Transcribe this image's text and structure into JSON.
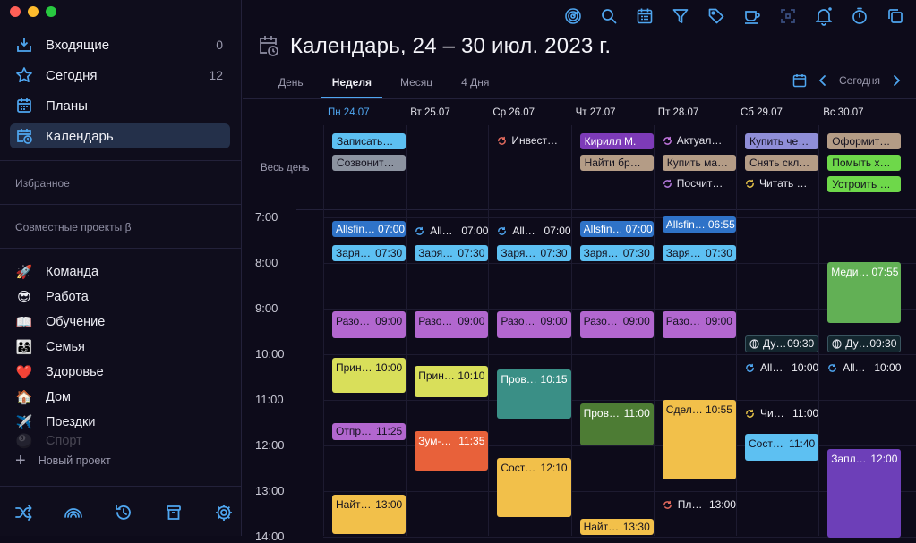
{
  "sidebar": {
    "nav": [
      {
        "label": "Входящие",
        "count": "0",
        "icon": "inbox-icon"
      },
      {
        "label": "Сегодня",
        "count": "12",
        "icon": "star-icon"
      },
      {
        "label": "Планы",
        "count": "",
        "icon": "plans-calendar-icon"
      },
      {
        "label": "Календарь",
        "count": "",
        "icon": "calendar-clock-icon"
      }
    ],
    "favorites_title": "Избранное",
    "shared_title": "Совместные проекты β",
    "projects": [
      {
        "emoji": "🚀",
        "label": "Команда"
      },
      {
        "emoji": "😎",
        "label": "Работа"
      },
      {
        "emoji": "📖",
        "label": "Обучение"
      },
      {
        "emoji": "👨‍👩‍👧",
        "label": "Семья"
      },
      {
        "emoji": "❤️",
        "label": "Здоровье"
      },
      {
        "emoji": "🏠",
        "label": "Дом"
      },
      {
        "emoji": "✈️",
        "label": "Поездки"
      },
      {
        "emoji": "🎱",
        "label": "Спорт"
      }
    ],
    "new_project": "Новый проект",
    "bottom_icons": [
      "shuffle-icon",
      "rainbow-icon",
      "history-icon",
      "trash-icon",
      "settings-icon"
    ]
  },
  "toolbar_icons": [
    "focus-icon",
    "search-icon",
    "calendar-grid-icon",
    "filter-icon",
    "tag-icon",
    "coffee-icon",
    "scan-icon",
    "bell-icon",
    "timer-icon",
    "copy-icon"
  ],
  "header": {
    "title": "Календарь, 24 – 30 июл. 2023 г.",
    "tabs": [
      "День",
      "Неделя",
      "Месяц",
      "4 Дня"
    ],
    "active_tab": "Неделя",
    "today_label": "Сегодня"
  },
  "days": [
    "Пн 24.07",
    "Вт 25.07",
    "Ср 26.07",
    "Чт 27.07",
    "Пт 28.07",
    "Сб 29.07",
    "Вс 30.07"
  ],
  "allday_label": "Весь день",
  "hours": [
    "7:00",
    "8:00",
    "9:00",
    "10:00",
    "11:00",
    "12:00",
    "13:00",
    "14:00"
  ],
  "allday": [
    {
      "day": 0,
      "row": 0,
      "text": "Записать…",
      "color": "#5dc0f2",
      "style": "chip"
    },
    {
      "day": 0,
      "row": 1,
      "text": "Созвонит…",
      "color": "#8c93a0",
      "style": "chip"
    },
    {
      "day": 2,
      "row": 0,
      "text": "Инвест…",
      "color": "#e36b5e",
      "style": "plain"
    },
    {
      "day": 3,
      "row": 0,
      "text": "Кирилл М.",
      "color": "#7d3bb8",
      "style": "chip"
    },
    {
      "day": 3,
      "row": 1,
      "text": "Найти бр…",
      "color": "#b49c86",
      "style": "chip"
    },
    {
      "day": 4,
      "row": 0,
      "text": "Актуал…",
      "color": "#c377e0",
      "style": "plain"
    },
    {
      "day": 4,
      "row": 1,
      "text": "Купить ма…",
      "color": "#b49c86",
      "style": "chip"
    },
    {
      "day": 4,
      "row": 2,
      "text": "Посчит…",
      "color": "#b67be0",
      "style": "plain"
    },
    {
      "day": 5,
      "row": 0,
      "text": "Купить че…",
      "color": "#8f8ed8",
      "style": "chip"
    },
    {
      "day": 5,
      "row": 1,
      "text": "Снять скл…",
      "color": "#b49c86",
      "style": "chip"
    },
    {
      "day": 5,
      "row": 2,
      "text": "Читать …",
      "color": "#e8c54a",
      "style": "plain"
    },
    {
      "day": 6,
      "row": 0,
      "text": "Оформит…",
      "color": "#b49c86",
      "style": "chip"
    },
    {
      "day": 6,
      "row": 1,
      "text": "Помыть х…",
      "color": "#6ed84a",
      "style": "chip"
    },
    {
      "day": 6,
      "row": 2,
      "text": "Устроить …",
      "color": "#6ed84a",
      "style": "chip"
    }
  ],
  "events": [
    {
      "day": 0,
      "text": "Allsfin…",
      "time": "07:00",
      "start": 7.08,
      "dur": 0.42,
      "color": "#2f73c8",
      "style": "block",
      "light": true
    },
    {
      "day": 0,
      "text": "Заря…",
      "time": "07:30",
      "start": 7.6,
      "dur": 0.4,
      "color": "#5dc0f2",
      "style": "block"
    },
    {
      "day": 0,
      "text": "Разо…",
      "time": "09:00",
      "start": 9.05,
      "dur": 0.65,
      "color": "#b267cf",
      "style": "block"
    },
    {
      "day": 0,
      "text": "Прин…",
      "time": "10:00",
      "start": 10.08,
      "dur": 0.82,
      "color": "#d9df5a",
      "style": "block"
    },
    {
      "day": 0,
      "text": "Отпр…",
      "time": "11:25",
      "start": 11.5,
      "dur": 0.45,
      "color": "#b267cf",
      "style": "block"
    },
    {
      "day": 0,
      "text": "Найт…",
      "time": "13:00",
      "start": 13.08,
      "dur": 0.92,
      "color": "#f2c04a",
      "style": "block"
    },
    {
      "day": 1,
      "text": "All…",
      "time": "07:00",
      "start": 7.12,
      "dur": 0.35,
      "color": "#4fa6f0",
      "style": "plain"
    },
    {
      "day": 1,
      "text": "Заря…",
      "time": "07:30",
      "start": 7.6,
      "dur": 0.4,
      "color": "#5dc0f2",
      "style": "block"
    },
    {
      "day": 1,
      "text": "Разо…",
      "time": "09:00",
      "start": 9.05,
      "dur": 0.65,
      "color": "#b267cf",
      "style": "block"
    },
    {
      "day": 1,
      "text": "Прин…",
      "time": "10:10",
      "start": 10.25,
      "dur": 0.75,
      "color": "#d9df5a",
      "style": "block"
    },
    {
      "day": 1,
      "text": "Зум-…",
      "time": "11:35",
      "start": 11.68,
      "dur": 0.92,
      "color": "#e8613a",
      "style": "block",
      "light": true
    },
    {
      "day": 2,
      "text": "All…",
      "time": "07:00",
      "start": 7.12,
      "dur": 0.35,
      "color": "#4fa6f0",
      "style": "plain"
    },
    {
      "day": 2,
      "text": "Заря…",
      "time": "07:30",
      "start": 7.6,
      "dur": 0.4,
      "color": "#5dc0f2",
      "style": "block"
    },
    {
      "day": 2,
      "text": "Разо…",
      "time": "09:00",
      "start": 9.05,
      "dur": 0.65,
      "color": "#b267cf",
      "style": "block"
    },
    {
      "day": 2,
      "text": "Пров…",
      "time": "10:15",
      "start": 10.33,
      "dur": 1.15,
      "color": "#3a8f86",
      "style": "block",
      "light": true
    },
    {
      "day": 2,
      "text": "Сост…",
      "time": "12:10",
      "start": 12.28,
      "dur": 1.35,
      "color": "#f2c04a",
      "style": "block"
    },
    {
      "day": 3,
      "text": "Allsfin…",
      "time": "07:00",
      "start": 7.08,
      "dur": 0.42,
      "color": "#2f73c8",
      "style": "block",
      "light": true
    },
    {
      "day": 3,
      "text": "Заря…",
      "time": "07:30",
      "start": 7.6,
      "dur": 0.4,
      "color": "#5dc0f2",
      "style": "block"
    },
    {
      "day": 3,
      "text": "Разо…",
      "time": "09:00",
      "start": 9.05,
      "dur": 0.65,
      "color": "#b267cf",
      "style": "block"
    },
    {
      "day": 3,
      "text": "Пров…",
      "time": "11:00",
      "start": 11.08,
      "dur": 0.98,
      "color": "#4d7c34",
      "style": "block",
      "light": true
    },
    {
      "day": 3,
      "text": "Найт…",
      "time": "13:30",
      "start": 13.6,
      "dur": 0.4,
      "color": "#f2c04a",
      "style": "block"
    },
    {
      "day": 4,
      "text": "Allsfin…",
      "time": "06:55",
      "start": 6.98,
      "dur": 0.42,
      "color": "#2f73c8",
      "style": "block",
      "light": true
    },
    {
      "day": 4,
      "text": "Заря…",
      "time": "07:30",
      "start": 7.6,
      "dur": 0.4,
      "color": "#5dc0f2",
      "style": "block"
    },
    {
      "day": 4,
      "text": "Разо…",
      "time": "09:00",
      "start": 9.05,
      "dur": 0.65,
      "color": "#b267cf",
      "style": "block"
    },
    {
      "day": 4,
      "text": "Сдел…",
      "time": "10:55",
      "start": 11.0,
      "dur": 1.8,
      "color": "#f2c04a",
      "style": "block"
    },
    {
      "day": 4,
      "text": "Пл…",
      "time": "13:00",
      "start": 13.12,
      "dur": 0.35,
      "color": "#e36b5e",
      "style": "plain"
    },
    {
      "day": 5,
      "text": "Ду…",
      "time": "09:30",
      "start": 9.58,
      "dur": 0.38,
      "color": "#e6e6ee",
      "style": "boxed"
    },
    {
      "day": 5,
      "text": "All…",
      "time": "10:00",
      "start": 10.12,
      "dur": 0.35,
      "color": "#4fa6f0",
      "style": "plain"
    },
    {
      "day": 5,
      "text": "Чи…",
      "time": "11:00",
      "start": 11.12,
      "dur": 0.35,
      "color": "#e8c54a",
      "style": "plain"
    },
    {
      "day": 5,
      "text": "Сост…",
      "time": "11:40",
      "start": 11.75,
      "dur": 0.65,
      "color": "#5dc0f2",
      "style": "block"
    },
    {
      "day": 6,
      "text": "Меди…",
      "time": "07:55",
      "start": 7.98,
      "dur": 1.4,
      "color": "#62b055",
      "style": "block",
      "light": true
    },
    {
      "day": 6,
      "text": "Ду…",
      "time": "09:30",
      "start": 9.58,
      "dur": 0.38,
      "color": "#e6e6ee",
      "style": "boxed"
    },
    {
      "day": 6,
      "text": "All…",
      "time": "10:00",
      "start": 10.12,
      "dur": 0.35,
      "color": "#4fa6f0",
      "style": "plain"
    },
    {
      "day": 6,
      "text": "Запл…",
      "time": "12:00",
      "start": 12.08,
      "dur": 2.0,
      "color": "#6d3fb8",
      "style": "block",
      "light": true
    }
  ]
}
